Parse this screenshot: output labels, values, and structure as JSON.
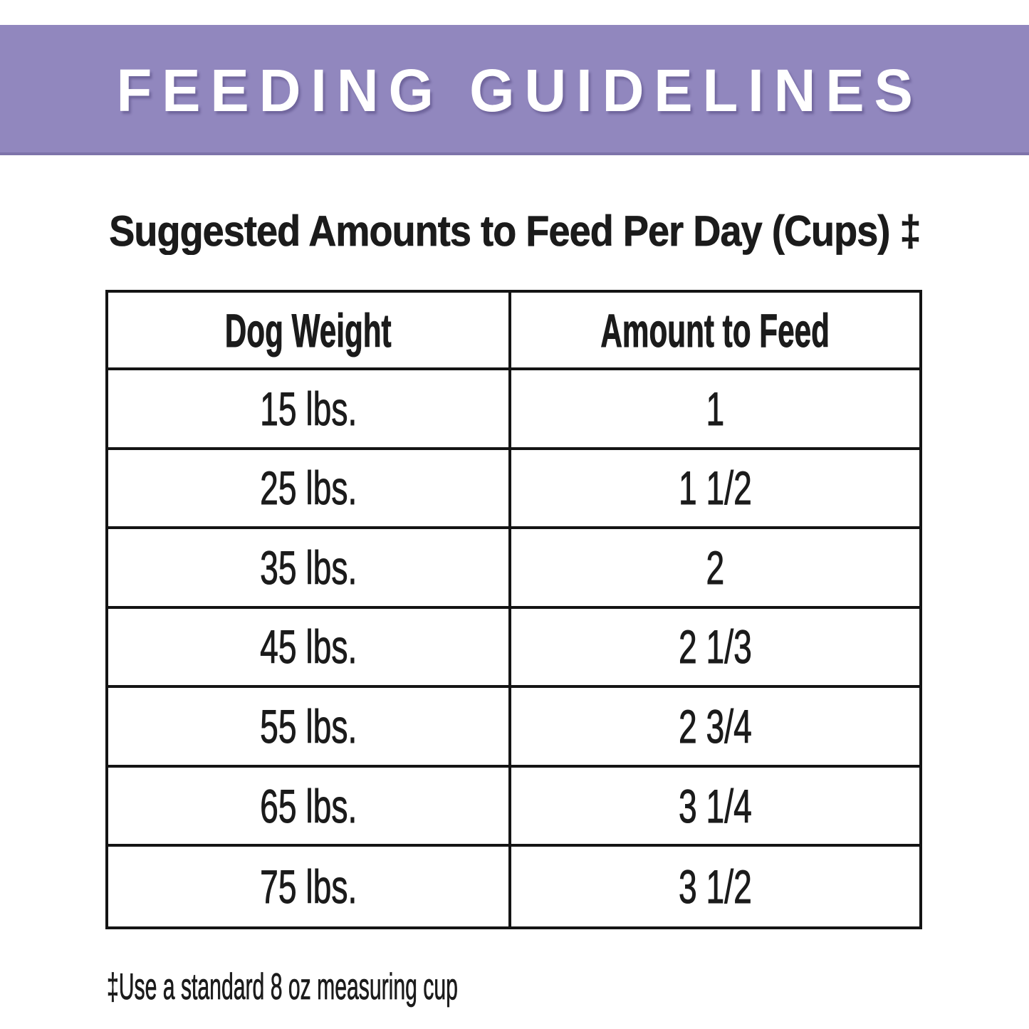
{
  "banner": {
    "title": "FEEDING GUIDELINES"
  },
  "heading": {
    "title": "Suggested Amounts to Feed Per Day (Cups) ‡"
  },
  "table": {
    "columns": [
      "Dog Weight",
      "Amount to Feed"
    ],
    "rows": [
      {
        "weight": "15 lbs.",
        "amount": "1"
      },
      {
        "weight": "25 lbs.",
        "amount": "1 1/2"
      },
      {
        "weight": "35 lbs.",
        "amount": "2"
      },
      {
        "weight": "45 lbs.",
        "amount": "2 1/3"
      },
      {
        "weight": "55 lbs.",
        "amount": "2 3/4"
      },
      {
        "weight": "65 lbs.",
        "amount": "3 1/4"
      },
      {
        "weight": "75 lbs.",
        "amount": "3 1/2"
      }
    ]
  },
  "footnote": "‡Use a standard 8 oz measuring cup",
  "colors": {
    "banner_bg": "#9187be",
    "banner_text": "#ffffff",
    "text": "#1b1b1b",
    "table_border": "#141414",
    "background": "#ffffff"
  }
}
